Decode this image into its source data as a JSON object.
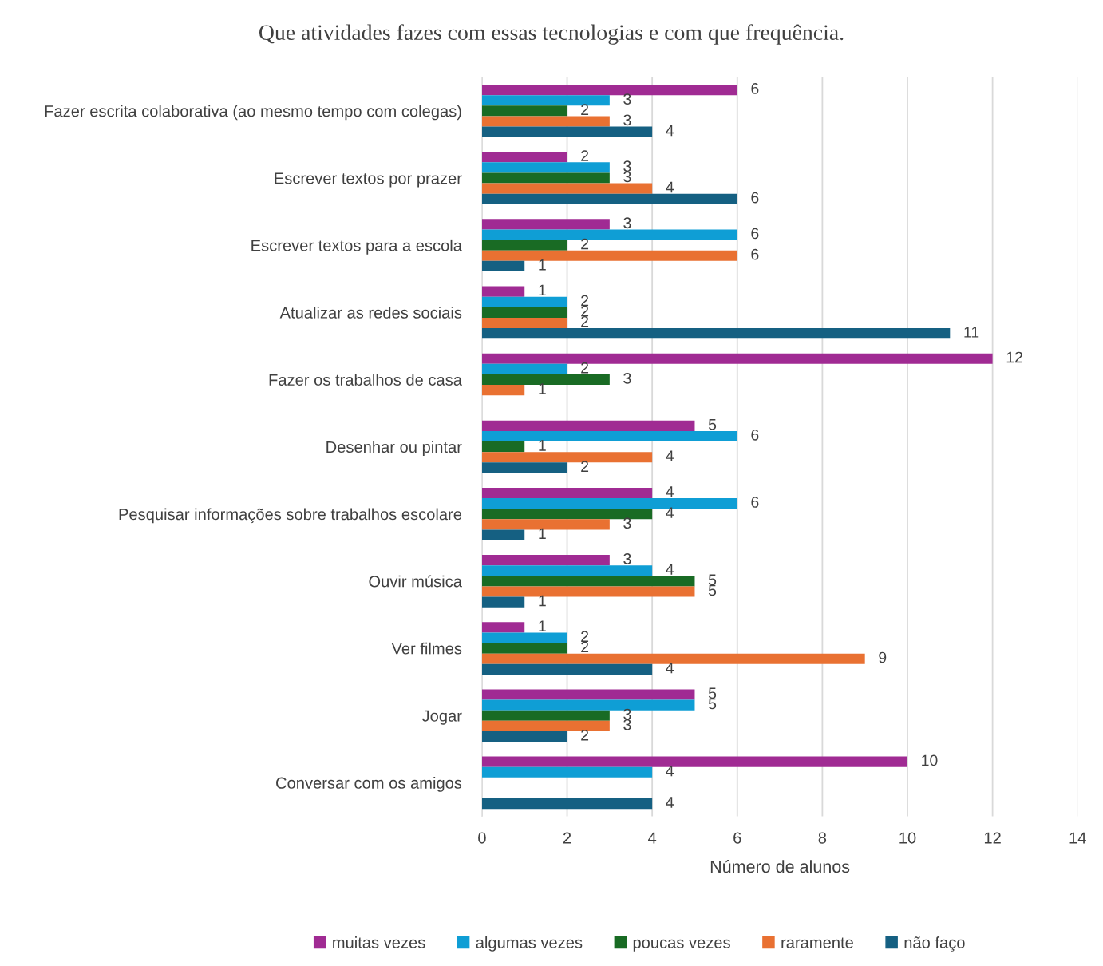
{
  "chart_data": {
    "type": "bar",
    "orientation": "horizontal",
    "title": "Que atividades fazes com essas tecnologias e com que frequência.",
    "xlabel": "Número de alunos",
    "categories": [
      "Fazer escrita colaborativa (ao mesmo tempo com colegas)",
      "Escrever textos por prazer",
      "Escrever textos para a escola",
      "Atualizar as redes sociais",
      "Fazer os trabalhos de casa",
      "Desenhar ou pintar",
      "Pesquisar informações sobre trabalhos escolare",
      "Ouvir música",
      "Ver filmes",
      "Jogar",
      "Conversar com os amigos"
    ],
    "series": [
      {
        "name": "muitas vezes",
        "color": "#a02b93",
        "values": [
          6,
          2,
          3,
          1,
          12,
          5,
          4,
          3,
          1,
          5,
          10
        ]
      },
      {
        "name": "algumas vezes",
        "color": "#0f9ed5",
        "values": [
          3,
          3,
          6,
          2,
          2,
          6,
          6,
          4,
          2,
          5,
          4
        ]
      },
      {
        "name": "poucas vezes",
        "color": "#196b24",
        "values": [
          2,
          3,
          2,
          2,
          3,
          1,
          4,
          5,
          2,
          3,
          null
        ]
      },
      {
        "name": "raramente",
        "color": "#e97132",
        "values": [
          3,
          4,
          6,
          2,
          1,
          4,
          3,
          5,
          9,
          3,
          null
        ]
      },
      {
        "name": "não faço",
        "color": "#156082",
        "values": [
          4,
          6,
          1,
          11,
          null,
          2,
          1,
          1,
          4,
          2,
          4
        ]
      }
    ],
    "xlim": [
      0,
      14
    ],
    "xticks": [
      0,
      2,
      4,
      6,
      8,
      10,
      12,
      14
    ],
    "grid": "x",
    "legend": "bottom",
    "data_labels": true
  }
}
